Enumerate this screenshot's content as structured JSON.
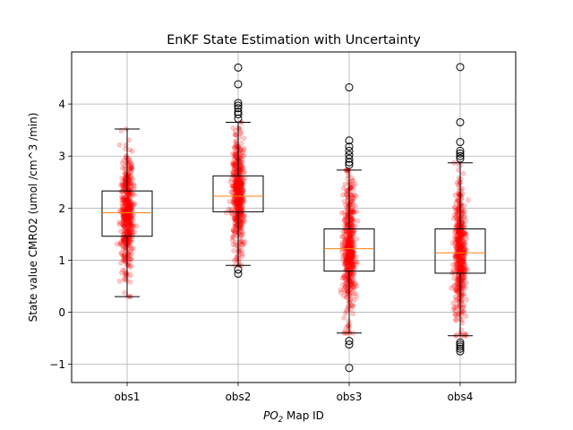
{
  "chart_data": {
    "type": "box",
    "title": "EnKF State Estimation with Uncertainty",
    "xlabel_italic": "PO",
    "xlabel_sub": "2",
    "xlabel_rest": " Map ID",
    "ylabel": "State value CMRO2 (umol /cm^3 /min)",
    "categories": [
      "obs1",
      "obs2",
      "obs3",
      "obs4"
    ],
    "ylim": [
      -1.35,
      5.0
    ],
    "yticks": [
      -1,
      0,
      1,
      2,
      3,
      4
    ],
    "ytick_labels": [
      "−1",
      "0",
      "1",
      "2",
      "3",
      "4"
    ],
    "grid": true,
    "box_stats": [
      {
        "name": "obs1",
        "q1": 1.46,
        "median": 1.91,
        "q3": 2.33,
        "whisker_low": 0.3,
        "whisker_high": 3.52,
        "outliers": []
      },
      {
        "name": "obs2",
        "q1": 1.93,
        "median": 2.23,
        "q3": 2.62,
        "whisker_low": 0.9,
        "whisker_high": 3.65,
        "outliers": [
          0.82,
          0.74,
          3.72,
          3.8,
          3.85,
          3.92,
          3.97,
          4.02,
          4.38,
          4.7
        ]
      },
      {
        "name": "obs3",
        "q1": 0.79,
        "median": 1.22,
        "q3": 1.6,
        "whisker_low": -0.4,
        "whisker_high": 2.73,
        "outliers": [
          -0.55,
          -0.62,
          -1.07,
          2.83,
          2.88,
          2.95,
          3.02,
          3.1,
          3.18,
          3.3,
          4.32
        ]
      },
      {
        "name": "obs4",
        "q1": 0.75,
        "median": 1.14,
        "q3": 1.6,
        "whisker_low": -0.45,
        "whisker_high": 2.87,
        "outliers": [
          -0.58,
          -0.62,
          -0.66,
          -0.7,
          -0.75,
          2.95,
          3.0,
          3.05,
          3.1,
          3.27,
          3.65,
          4.71
        ]
      }
    ],
    "jitter_points": {
      "color": "#ff0000",
      "count_per_group": 520,
      "spread_sd": [
        0.58,
        0.55,
        0.62,
        0.64
      ]
    },
    "colors": {
      "box": "#000000",
      "median": "#ff7f0e",
      "grid": "#b0b0b0",
      "points": "#ff0000"
    }
  }
}
